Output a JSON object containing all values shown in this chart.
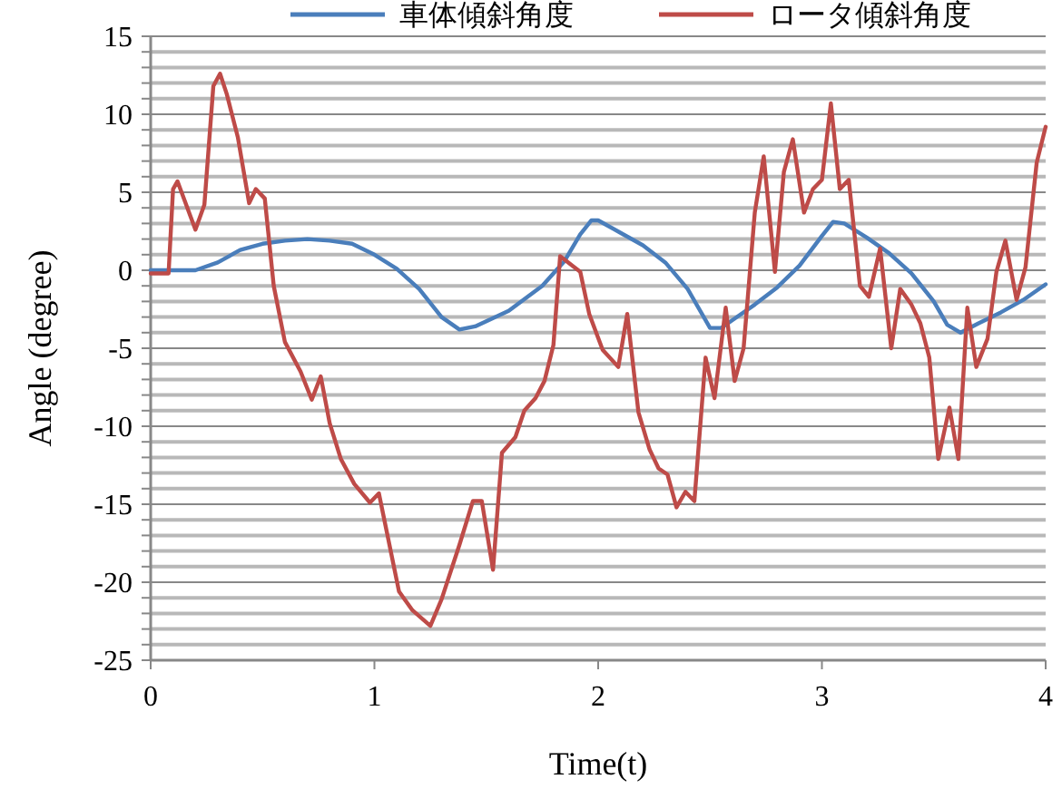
{
  "chart_data": {
    "type": "line",
    "xlabel": "Time(t)",
    "ylabel": "Angle (degree)",
    "xlim": [
      0,
      4
    ],
    "xticks": [
      0,
      1,
      2,
      3,
      4
    ],
    "ylim": [
      -25,
      15
    ],
    "yticks": [
      -25,
      {
        "value": -24,
        "label": null
      },
      {
        "value": -23,
        "label": null
      },
      {
        "value": -22,
        "label": null
      },
      {
        "value": -21,
        "label": null
      },
      -20,
      {
        "value": -19,
        "label": null
      },
      {
        "value": -18,
        "label": null
      },
      {
        "value": -17,
        "label": null
      },
      {
        "value": -16,
        "label": null
      },
      -15,
      {
        "value": -14,
        "label": null
      },
      {
        "value": -13,
        "label": null
      },
      {
        "value": -12,
        "label": null
      },
      {
        "value": -11,
        "label": null
      },
      -10,
      {
        "value": -9,
        "label": null
      },
      {
        "value": -8,
        "label": null
      },
      {
        "value": -7,
        "label": null
      },
      {
        "value": -6,
        "label": null
      },
      -5,
      {
        "value": -4,
        "label": null
      },
      {
        "value": -3,
        "label": null
      },
      {
        "value": -2,
        "label": null
      },
      {
        "value": -1,
        "label": null
      },
      0,
      {
        "value": 1,
        "label": null
      },
      {
        "value": 2,
        "label": null
      },
      {
        "value": 3,
        "label": null
      },
      {
        "value": 4,
        "label": null
      },
      5,
      {
        "value": 6,
        "label": null
      },
      {
        "value": 7,
        "label": null
      },
      {
        "value": 8,
        "label": null
      },
      {
        "value": 9,
        "label": null
      },
      10,
      {
        "value": 11,
        "label": null
      },
      {
        "value": 12,
        "label": null
      },
      {
        "value": 13,
        "label": null
      },
      {
        "value": 14,
        "label": null
      },
      15
    ],
    "grid": "y",
    "legend": "top",
    "marker": "none",
    "line_style": "solid",
    "series": [
      {
        "name": "車体傾斜角度",
        "color": "#4a7ebb",
        "x": [
          0,
          0.2,
          0.3,
          0.4,
          0.5,
          0.6,
          0.7,
          0.8,
          0.9,
          1.0,
          1.1,
          1.2,
          1.3,
          1.38,
          1.45,
          1.6,
          1.75,
          1.85,
          1.92,
          1.97,
          2.0,
          2.1,
          2.2,
          2.3,
          2.4,
          2.5,
          2.55,
          2.6,
          2.7,
          2.8,
          2.9,
          3.0,
          3.05,
          3.1,
          3.2,
          3.3,
          3.4,
          3.5,
          3.56,
          3.62,
          3.7,
          3.8,
          3.9,
          4.0
        ],
        "values": [
          0,
          0,
          0.5,
          1.3,
          1.7,
          1.9,
          2.0,
          1.9,
          1.7,
          1.0,
          0.1,
          -1.2,
          -3,
          -3.8,
          -3.6,
          -2.6,
          -1.0,
          0.6,
          2.3,
          3.2,
          3.2,
          2.4,
          1.6,
          0.5,
          -1.2,
          -3.7,
          -3.7,
          -3.2,
          -2.2,
          -1.1,
          0.3,
          2.2,
          3.1,
          3.0,
          2.1,
          1.1,
          -0.2,
          -2,
          -3.5,
          -4.0,
          -3.4,
          -2.7,
          -1.9,
          -0.9
        ]
      },
      {
        "name": "ロータ傾斜角度",
        "color": "#be4b48",
        "x": [
          0,
          0.08,
          0.1,
          0.12,
          0.2,
          0.24,
          0.28,
          0.31,
          0.34,
          0.39,
          0.44,
          0.47,
          0.51,
          0.55,
          0.6,
          0.67,
          0.72,
          0.76,
          0.8,
          0.85,
          0.91,
          0.98,
          1.02,
          1.11,
          1.17,
          1.25,
          1.3,
          1.38,
          1.44,
          1.48,
          1.53,
          1.57,
          1.63,
          1.67,
          1.72,
          1.76,
          1.8,
          1.83,
          1.92,
          1.96,
          2.02,
          2.09,
          2.13,
          2.18,
          2.23,
          2.27,
          2.31,
          2.35,
          2.39,
          2.43,
          2.48,
          2.52,
          2.57,
          2.61,
          2.65,
          2.7,
          2.74,
          2.79,
          2.83,
          2.87,
          2.92,
          2.96,
          3.0,
          3.04,
          3.08,
          3.12,
          3.17,
          3.21,
          3.26,
          3.31,
          3.35,
          3.4,
          3.44,
          3.48,
          3.52,
          3.57,
          3.61,
          3.65,
          3.69,
          3.74,
          3.78,
          3.82,
          3.87,
          3.91,
          3.96,
          4.0
        ],
        "values": [
          -0.2,
          -0.2,
          5.2,
          5.7,
          2.6,
          4.2,
          11.8,
          12.6,
          11.3,
          8.5,
          4.3,
          5.2,
          4.6,
          -1,
          -4.6,
          -6.5,
          -8.3,
          -6.8,
          -9.8,
          -12.1,
          -13.7,
          -14.9,
          -14.3,
          -20.6,
          -21.8,
          -22.8,
          -21.1,
          -17.6,
          -14.8,
          -14.8,
          -19.2,
          -11.7,
          -10.7,
          -9,
          -8.2,
          -7.1,
          -4.8,
          0.9,
          -0.1,
          -2.8,
          -5.1,
          -6.2,
          -2.8,
          -9.1,
          -11.5,
          -12.7,
          -13.1,
          -15.2,
          -14.2,
          -14.8,
          -5.6,
          -8.2,
          -2.4,
          -7.1,
          -5,
          3.7,
          7.3,
          -0.1,
          6.3,
          8.4,
          3.7,
          5.2,
          5.8,
          10.7,
          5.2,
          5.8,
          -1.0,
          -1.7,
          1.4,
          -5,
          -1.2,
          -2.2,
          -3.4,
          -5.6,
          -12.1,
          -8.8,
          -12.1,
          -2.4,
          -6.2,
          -4.4,
          -0.1,
          1.9,
          -1.9,
          0.2,
          6.9,
          9.2
        ]
      }
    ]
  }
}
